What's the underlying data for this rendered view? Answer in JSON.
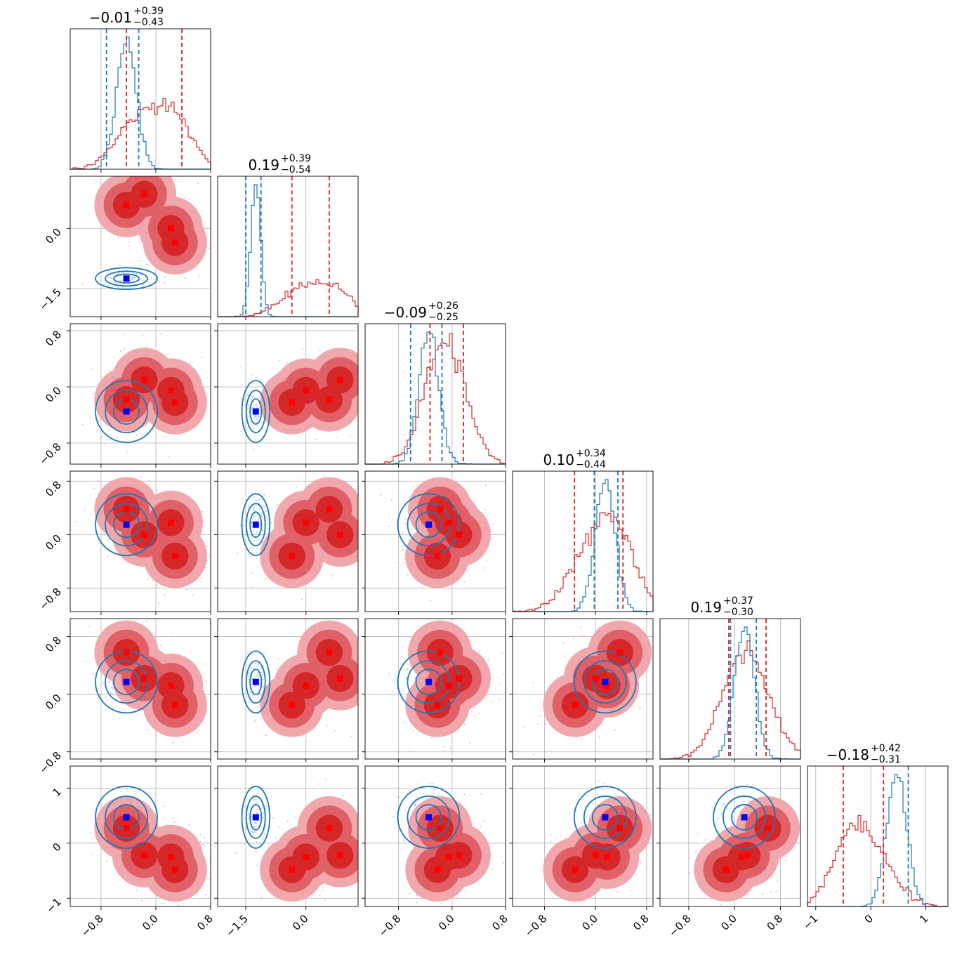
{
  "colors": {
    "red": "#d62728",
    "blue": "#1f77b4",
    "marker_red": "#ff0000",
    "marker_blue": "#0000ff",
    "grid": "#b0b0b0"
  },
  "chart_data": {
    "type": "corner",
    "ndim": 6,
    "grid": true,
    "titles": [
      {
        "value": "−0.01",
        "plus": "+0.39",
        "minus": "−0.43"
      },
      {
        "value": "0.19",
        "plus": "+0.39",
        "minus": "−0.54"
      },
      {
        "value": "−0.09",
        "plus": "+0.26",
        "minus": "−0.25"
      },
      {
        "value": "0.10",
        "plus": "+0.34",
        "minus": "−0.44"
      },
      {
        "value": "0.19",
        "plus": "+0.37",
        "minus": "−0.30"
      },
      {
        "value": "−0.18",
        "plus": "+0.42",
        "minus": "−0.31"
      }
    ],
    "xlim": [
      [
        -1.25,
        0.8
      ],
      [
        -2.2,
        1.3
      ],
      [
        -1.3,
        0.8
      ],
      [
        -1.3,
        0.9
      ],
      [
        -1.3,
        1.15
      ],
      [
        -1.15,
        1.4
      ]
    ],
    "xticks": [
      [
        {
          "v": -0.8,
          "t": "−0.8"
        },
        {
          "v": 0.0,
          "t": "0.0"
        },
        {
          "v": 0.8,
          "t": "0.8"
        }
      ],
      [
        {
          "v": -1.5,
          "t": "−1.5"
        },
        {
          "v": 0.0,
          "t": "0.0"
        }
      ],
      [
        {
          "v": -0.8,
          "t": "−0.8"
        },
        {
          "v": 0.0,
          "t": "0.0"
        },
        {
          "v": 0.8,
          "t": "0.8"
        }
      ],
      [
        {
          "v": -0.8,
          "t": "−0.8"
        },
        {
          "v": 0.0,
          "t": "0.0"
        },
        {
          "v": 0.8,
          "t": "0.8"
        }
      ],
      [
        {
          "v": -0.8,
          "t": "−0.8"
        },
        {
          "v": 0.0,
          "t": "0.0"
        },
        {
          "v": 0.8,
          "t": "0.8"
        }
      ],
      [
        {
          "v": -1,
          "t": "−1"
        },
        {
          "v": 0,
          "t": "0"
        },
        {
          "v": 1,
          "t": "1"
        }
      ]
    ],
    "ylim": [
      null,
      [
        -2.2,
        1.3
      ],
      [
        -1.1,
        0.9
      ],
      [
        -1.15,
        0.95
      ],
      [
        -0.9,
        1.05
      ],
      [
        -1.15,
        1.4
      ]
    ],
    "yticks": [
      null,
      [
        {
          "v": 0.0,
          "t": "0.0"
        },
        {
          "v": -1.5,
          "t": "−1.5"
        }
      ],
      [
        {
          "v": 0.8,
          "t": "0.8"
        },
        {
          "v": 0.0,
          "t": "0.0"
        },
        {
          "v": -0.8,
          "t": "−0.8"
        }
      ],
      [
        {
          "v": 0.8,
          "t": "0.8"
        },
        {
          "v": 0.0,
          "t": "0.0"
        },
        {
          "v": -0.8,
          "t": "−0.8"
        }
      ],
      [
        {
          "v": 0.8,
          "t": "0.8"
        },
        {
          "v": 0.0,
          "t": "0.0"
        },
        {
          "v": -0.8,
          "t": "−0.8"
        }
      ],
      [
        {
          "v": 1,
          "t": "1"
        },
        {
          "v": 0,
          "t": "0"
        },
        {
          "v": -1,
          "t": "−1"
        }
      ]
    ],
    "quantiles_red": [
      [
        -0.43,
        0.38
      ],
      [
        -0.35,
        0.58
      ],
      [
        -0.33,
        0.17
      ],
      [
        -0.33,
        0.43
      ],
      [
        -0.1,
        0.55
      ],
      [
        -0.5,
        0.23
      ]
    ],
    "quantiles_blue": [
      [
        -0.72,
        -0.25
      ],
      [
        -1.5,
        -1.12
      ],
      [
        -0.62,
        -0.15
      ],
      [
        -0.02,
        0.35
      ],
      [
        -0.07,
        0.38
      ],
      [
        0.68
      ]
    ],
    "red_markers_1d": [
      [
        -0.43,
        -0.17,
        0.22,
        0.28
      ],
      [
        0.58,
        0.85,
        0.0,
        -0.35
      ],
      [
        -0.18,
        0.1,
        -0.05,
        -0.22,
        -0.18
      ],
      [
        0.38,
        0.0,
        0.18,
        -0.32,
        0.38
      ],
      [
        0.58,
        0.22,
        0.12,
        -0.15,
        0.22
      ],
      [
        0.27,
        -0.22,
        -0.25,
        -0.48
      ]
    ],
    "blue_markers_1d": [
      -0.43,
      -1.25,
      -0.35,
      0.15,
      0.17,
      0.47
    ],
    "red_samples": [
      [
        -0.43,
        0.58,
        -0.18,
        0.38,
        0.58,
        0.27
      ],
      [
        -0.17,
        0.85,
        0.1,
        0.0,
        0.22,
        -0.22
      ],
      [
        0.22,
        0.0,
        -0.05,
        0.18,
        0.12,
        -0.25
      ],
      [
        0.28,
        -0.35,
        -0.22,
        -0.32,
        -0.15,
        -0.48
      ]
    ],
    "blue_sample": [
      -0.43,
      -1.25,
      -0.35,
      0.15,
      0.17,
      0.47
    ]
  }
}
